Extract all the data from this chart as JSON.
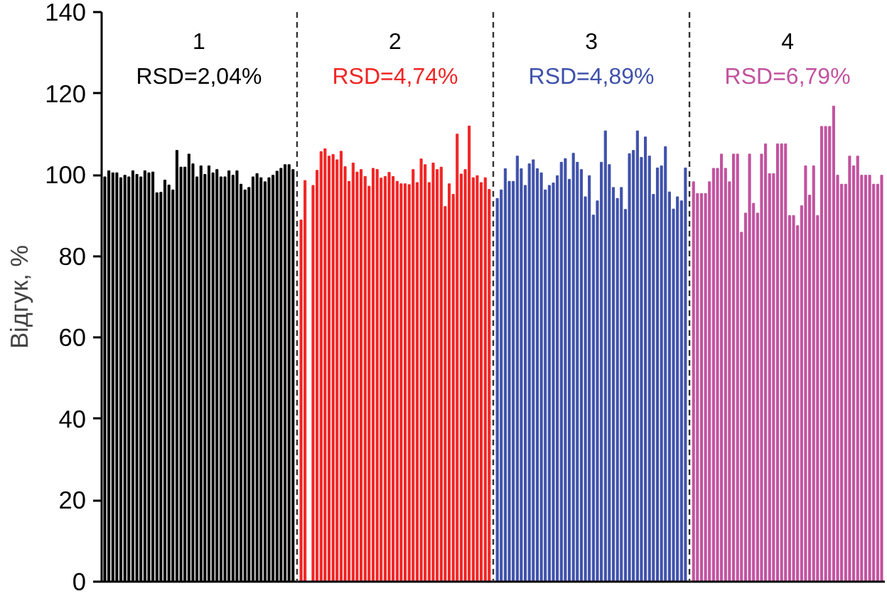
{
  "chart_data": {
    "type": "bar",
    "ylabel": "Відгук, %",
    "ylim": [
      0,
      140
    ],
    "yticks": [
      0,
      20,
      40,
      60,
      80,
      100,
      120,
      140
    ],
    "tick_labels": "y",
    "grid": false,
    "annotations": [
      "1",
      "RSD=2,04%",
      "2",
      "RSD=4,74%",
      "3",
      "RSD=4,89%",
      "4",
      "RSD=6,79%"
    ],
    "categories": [
      null,
      null,
      null,
      null,
      null,
      null,
      null,
      null,
      null,
      null,
      null,
      null,
      null,
      null,
      null,
      null,
      null,
      null,
      null,
      null,
      null,
      null,
      null,
      null,
      null,
      null,
      null,
      null,
      null,
      null,
      null,
      null,
      null,
      null,
      null,
      null,
      null,
      null,
      null,
      null,
      null,
      null,
      null,
      null,
      null,
      null,
      null,
      null,
      null,
      null,
      null,
      null,
      null,
      null,
      null,
      null,
      null,
      null,
      null,
      null,
      null,
      null,
      null,
      null,
      null,
      null,
      null,
      null,
      null,
      null,
      null,
      null,
      null,
      null,
      null,
      null,
      null,
      null,
      null,
      null,
      null,
      null,
      null,
      null,
      null,
      null,
      null,
      null,
      null,
      null,
      null,
      null,
      null,
      null,
      null,
      null,
      null,
      null,
      null,
      null,
      null,
      null,
      null,
      null,
      null,
      null,
      null,
      null,
      null,
      null,
      null,
      null,
      null,
      null,
      null,
      null,
      null,
      null,
      null,
      null,
      null,
      null,
      null,
      null,
      null,
      null,
      null,
      null,
      null,
      null,
      null,
      null,
      null,
      null,
      null,
      null,
      null,
      null,
      null,
      null,
      null,
      null,
      null,
      null,
      null,
      null,
      null,
      null,
      null,
      null,
      null,
      null,
      null,
      null,
      null,
      null,
      null,
      null,
      null,
      null,
      null,
      null,
      null,
      null,
      null,
      null,
      null,
      null,
      null,
      null,
      null,
      null,
      null,
      null,
      null,
      null,
      null,
      null,
      null,
      null,
      null,
      null,
      null,
      null,
      null,
      null,
      null,
      null,
      null,
      null,
      null,
      null,
      null,
      null,
      null
    ],
    "series": [
      {
        "color": "#000000",
        "values": [
          99.5,
          101.0,
          100.5,
          100.5,
          99.3,
          99.9,
          99.5,
          101.0,
          100.1,
          99.5,
          101.0,
          100.5,
          100.7,
          95.6,
          95.7,
          98.7,
          97.5,
          96.3,
          106.0,
          101.9,
          101.9,
          105.1,
          102.7,
          99.5,
          102.2,
          100.1,
          102.2,
          100.5,
          101.3,
          99.5,
          99.5,
          101.0,
          99.9,
          101.0,
          97.7,
          96.3,
          96.9,
          99.5,
          100.3,
          99.3,
          98.3,
          99.3,
          99.9,
          100.9,
          101.6,
          102.5,
          102.5,
          101.3,
          null,
          null,
          null,
          null,
          null,
          null,
          null,
          null,
          null,
          null,
          null,
          null,
          null,
          null,
          null,
          null,
          null,
          null,
          null,
          null,
          null,
          null,
          null,
          null,
          null,
          null,
          null,
          null,
          null,
          null,
          null,
          null,
          null,
          null,
          null,
          null,
          null,
          null,
          null,
          null,
          null,
          null,
          null,
          null,
          null,
          null,
          null,
          null,
          null,
          null,
          null,
          null,
          null,
          null,
          null,
          null,
          null,
          null,
          null,
          null,
          null,
          null,
          null,
          null,
          null,
          null,
          null,
          null,
          null,
          null,
          null,
          null,
          null,
          null,
          null,
          null,
          null,
          null,
          null,
          null,
          null,
          null,
          null,
          null,
          null,
          null,
          null,
          null,
          null,
          null,
          null,
          null,
          null,
          null,
          null,
          null,
          null,
          null,
          null,
          null,
          null,
          null,
          null,
          null,
          null,
          null,
          null,
          null,
          null,
          null,
          null,
          null,
          null,
          null,
          null,
          null,
          null,
          null,
          null,
          null,
          null,
          null,
          null,
          null,
          null,
          null,
          null,
          null,
          null,
          null,
          null,
          null,
          null,
          null,
          null,
          null,
          null,
          null,
          null,
          null,
          null,
          null,
          null,
          null,
          null,
          null,
          null
        ]
      },
      {
        "color": "#f02525",
        "values": [
          null,
          null,
          null,
          null,
          null,
          null,
          null,
          null,
          null,
          null,
          null,
          null,
          null,
          null,
          null,
          null,
          null,
          null,
          null,
          null,
          null,
          null,
          null,
          null,
          null,
          null,
          null,
          null,
          null,
          null,
          null,
          null,
          null,
          null,
          null,
          null,
          null,
          null,
          null,
          null,
          null,
          null,
          null,
          null,
          null,
          null,
          null,
          null,
          null,
          88.9,
          98.6,
          null,
          97.4,
          101.1,
          105.7,
          106.4,
          104.6,
          105.0,
          103.7,
          105.8,
          102.0,
          98.4,
          102.9,
          100.7,
          101.3,
          99.6,
          97.2,
          101.6,
          101.3,
          99.2,
          99.6,
          100.6,
          99.6,
          98.4,
          97.8,
          97.8,
          97.6,
          101.3,
          98.1,
          103.9,
          102.5,
          98.1,
          102.9,
          101.3,
          101.9,
          92.2,
          97.8,
          95.2,
          110.0,
          100.2,
          101.3,
          112.0,
          99.3,
          99.8,
          98.1,
          99.3,
          96.4,
          null,
          null,
          null,
          null,
          null,
          null,
          null,
          null,
          null,
          null,
          null,
          null,
          null,
          null,
          null,
          null,
          null,
          null,
          null,
          null,
          null,
          null,
          null,
          null,
          null,
          null,
          null,
          null,
          null,
          null,
          null,
          null,
          null,
          null,
          null,
          null,
          null,
          null,
          null,
          null,
          null,
          null,
          null,
          null,
          null,
          null,
          null,
          null,
          null,
          null,
          null,
          null,
          null,
          null,
          null,
          null,
          null,
          null,
          null,
          null,
          null,
          null,
          null,
          null,
          null,
          null,
          null,
          null,
          null,
          null,
          null,
          null,
          null,
          null,
          null,
          null,
          null,
          null,
          null,
          null,
          null,
          null,
          null,
          null,
          null,
          null,
          null,
          null,
          null,
          null,
          null,
          null,
          null,
          null,
          null,
          null,
          null,
          null
        ]
      },
      {
        "color": "#3f51ab",
        "values": [
          null,
          null,
          null,
          null,
          null,
          null,
          null,
          null,
          null,
          null,
          null,
          null,
          null,
          null,
          null,
          null,
          null,
          null,
          null,
          null,
          null,
          null,
          null,
          null,
          null,
          null,
          null,
          null,
          null,
          null,
          null,
          null,
          null,
          null,
          null,
          null,
          null,
          null,
          null,
          null,
          null,
          null,
          null,
          null,
          null,
          null,
          null,
          null,
          null,
          null,
          null,
          null,
          null,
          null,
          null,
          null,
          null,
          null,
          null,
          null,
          null,
          null,
          null,
          null,
          null,
          null,
          null,
          null,
          null,
          null,
          null,
          null,
          null,
          null,
          null,
          null,
          null,
          null,
          null,
          null,
          null,
          null,
          null,
          null,
          null,
          null,
          null,
          null,
          null,
          null,
          null,
          null,
          null,
          null,
          null,
          null,
          null,
          null,
          94.2,
          96.3,
          101.5,
          98.4,
          98.4,
          104.6,
          101.5,
          97.4,
          102.7,
          103.7,
          101.5,
          100.5,
          96.3,
          97.4,
          98.0,
          99.8,
          103.1,
          104.0,
          98.9,
          105.3,
          103.1,
          101.3,
          94.6,
          99.8,
          90.1,
          93.6,
          103.1,
          110.8,
          102.5,
          96.9,
          94.2,
          96.9,
          91.5,
          105.2,
          106.0,
          110.8,
          104.3,
          109.3,
          104.6,
          95.2,
          101.7,
          102.2,
          106.9,
          95.8,
          91.6,
          94.6,
          93.6,
          101.7,
          null,
          null,
          null,
          null,
          null,
          null,
          null,
          null,
          null,
          null,
          null,
          null,
          null,
          null,
          null,
          null,
          null,
          null,
          null,
          null,
          null,
          null,
          null,
          null,
          null,
          null,
          null,
          null,
          null,
          null,
          null,
          null,
          null,
          null,
          null,
          null,
          null,
          null,
          null,
          null,
          null,
          null,
          null,
          null,
          null,
          null,
          null,
          null,
          null
        ]
      },
      {
        "color": "#c2529e",
        "values": [
          null,
          null,
          null,
          null,
          null,
          null,
          null,
          null,
          null,
          null,
          null,
          null,
          null,
          null,
          null,
          null,
          null,
          null,
          null,
          null,
          null,
          null,
          null,
          null,
          null,
          null,
          null,
          null,
          null,
          null,
          null,
          null,
          null,
          null,
          null,
          null,
          null,
          null,
          null,
          null,
          null,
          null,
          null,
          null,
          null,
          null,
          null,
          null,
          null,
          null,
          null,
          null,
          null,
          null,
          null,
          null,
          null,
          null,
          null,
          null,
          null,
          null,
          null,
          null,
          null,
          null,
          null,
          null,
          null,
          null,
          null,
          null,
          null,
          null,
          null,
          null,
          null,
          null,
          null,
          null,
          null,
          null,
          null,
          null,
          null,
          null,
          null,
          null,
          null,
          null,
          null,
          null,
          null,
          null,
          null,
          null,
          null,
          null,
          null,
          null,
          null,
          null,
          null,
          null,
          null,
          null,
          null,
          null,
          null,
          null,
          null,
          null,
          null,
          null,
          null,
          null,
          null,
          null,
          null,
          null,
          null,
          null,
          null,
          null,
          null,
          null,
          null,
          null,
          null,
          null,
          null,
          null,
          null,
          null,
          null,
          null,
          null,
          null,
          null,
          null,
          null,
          null,
          null,
          null,
          null,
          null,
          null,
          98.3,
          95.4,
          95.4,
          95.4,
          98.3,
          101.6,
          101.6,
          105.1,
          101.6,
          98.3,
          105.1,
          105.1,
          85.9,
          90.6,
          105.1,
          93.0,
          90.6,
          105.1,
          107.6,
          100.3,
          100.3,
          107.6,
          107.6,
          107.6,
          90.0,
          90.0,
          87.5,
          92.4,
          102.2,
          95.0,
          102.2,
          90.0,
          111.9,
          111.9,
          111.9,
          116.9,
          99.9,
          97.7,
          97.7,
          104.6,
          102.2,
          104.6,
          99.9,
          99.9,
          99.9,
          97.7,
          97.7,
          99.9
        ]
      }
    ]
  }
}
